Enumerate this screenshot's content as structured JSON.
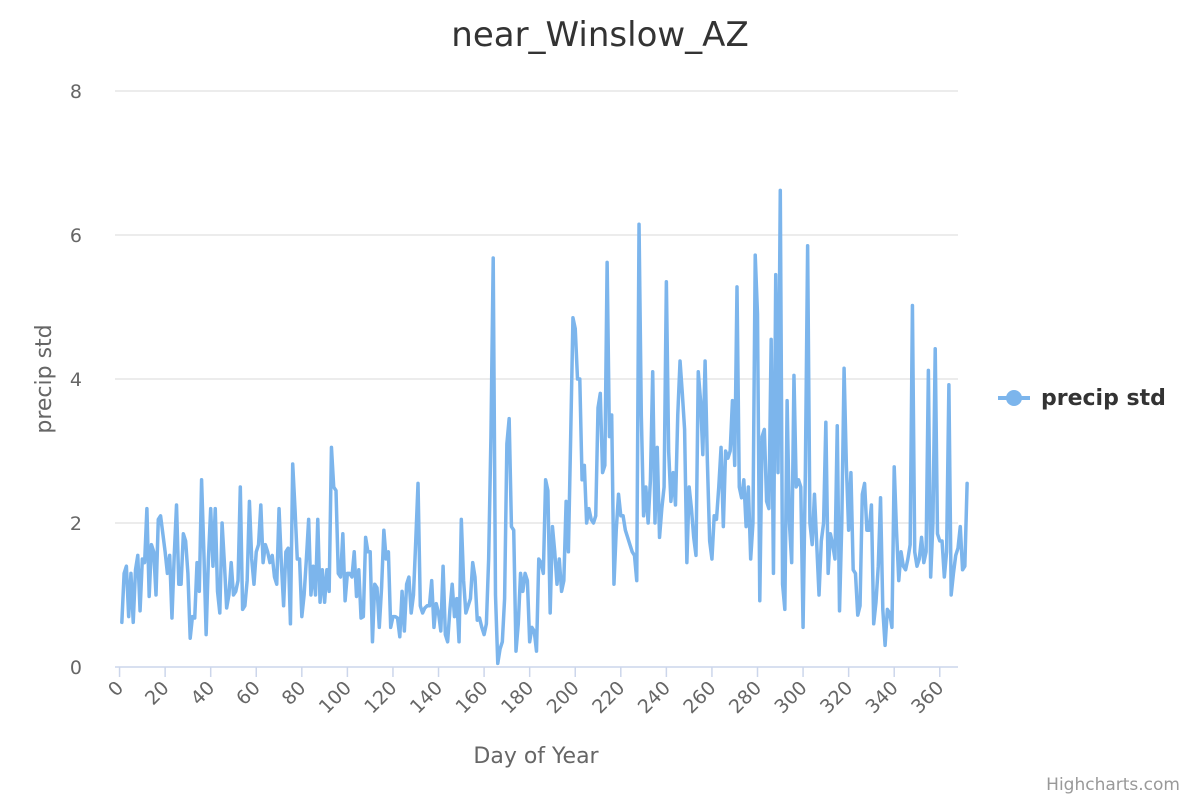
{
  "chart_data": {
    "type": "line",
    "title": "near_Winslow_AZ",
    "xlabel": "Day of Year",
    "ylabel": "precip std",
    "xlim": [
      -2,
      368
    ],
    "ylim": [
      0,
      8
    ],
    "x_ticks": [
      0,
      20,
      40,
      60,
      80,
      100,
      120,
      140,
      160,
      180,
      200,
      220,
      240,
      260,
      280,
      300,
      320,
      340,
      360
    ],
    "y_ticks": [
      0,
      2,
      4,
      6,
      8
    ],
    "grid": true,
    "legend": "right",
    "series": [
      {
        "name": "precip std",
        "color": "#7cb5ec",
        "x_start": 1,
        "values": [
          0.62,
          1.3,
          1.4,
          0.7,
          1.3,
          0.62,
          1.35,
          1.55,
          0.78,
          1.5,
          1.45,
          2.2,
          0.98,
          1.7,
          1.6,
          1.0,
          2.05,
          2.1,
          1.85,
          1.6,
          1.3,
          1.55,
          0.68,
          1.55,
          2.25,
          1.15,
          1.15,
          1.85,
          1.75,
          1.3,
          0.4,
          0.7,
          0.68,
          1.45,
          1.05,
          2.6,
          1.6,
          0.45,
          1.5,
          2.2,
          1.4,
          2.2,
          1.05,
          0.75,
          2.0,
          1.45,
          0.82,
          1.0,
          1.45,
          1.0,
          1.05,
          1.2,
          2.5,
          0.8,
          0.85,
          1.2,
          2.3,
          1.5,
          1.15,
          1.6,
          1.7,
          2.25,
          1.45,
          1.7,
          1.6,
          1.45,
          1.55,
          1.25,
          1.15,
          2.2,
          1.45,
          0.85,
          1.6,
          1.65,
          0.6,
          2.82,
          2.2,
          1.5,
          1.5,
          0.7,
          1.0,
          1.5,
          2.05,
          1.0,
          1.4,
          1.0,
          2.05,
          0.9,
          1.35,
          0.9,
          1.35,
          1.05,
          3.05,
          2.5,
          2.45,
          1.3,
          1.25,
          1.85,
          0.92,
          1.3,
          1.3,
          1.25,
          1.6,
          0.98,
          1.35,
          0.68,
          0.7,
          1.8,
          1.6,
          1.6,
          0.35,
          1.15,
          1.1,
          0.55,
          1.1,
          1.9,
          1.5,
          1.6,
          0.55,
          0.7,
          0.7,
          0.68,
          0.42,
          1.05,
          0.5,
          1.15,
          1.25,
          0.75,
          1.0,
          1.75,
          2.55,
          0.85,
          0.75,
          0.82,
          0.85,
          0.85,
          1.2,
          0.55,
          0.88,
          0.75,
          0.5,
          1.4,
          0.45,
          0.35,
          0.8,
          1.15,
          0.7,
          0.95,
          0.35,
          2.05,
          1.2,
          0.75,
          0.85,
          0.95,
          1.45,
          1.25,
          0.65,
          0.68,
          0.55,
          0.45,
          0.6,
          1.5,
          3.2,
          5.68,
          1.0,
          0.05,
          0.25,
          0.35,
          0.95,
          3.1,
          3.45,
          1.95,
          1.9,
          0.22,
          0.6,
          1.3,
          1.05,
          1.3,
          1.2,
          0.35,
          0.55,
          0.5,
          0.22,
          1.5,
          1.45,
          1.3,
          2.6,
          2.45,
          0.75,
          1.95,
          1.6,
          1.15,
          1.5,
          1.05,
          1.2,
          2.3,
          1.6,
          3.2,
          4.85,
          4.7,
          4.0,
          4.0,
          2.6,
          2.8,
          2.0,
          2.2,
          2.05,
          2.0,
          2.1,
          3.6,
          3.8,
          2.7,
          2.8,
          5.62,
          3.2,
          3.5,
          1.15,
          1.9,
          2.4,
          2.1,
          2.1,
          1.9,
          1.8,
          1.7,
          1.6,
          1.55,
          1.2,
          6.15,
          3.5,
          2.1,
          2.5,
          2.0,
          2.6,
          4.1,
          2.0,
          3.05,
          1.8,
          2.2,
          2.5,
          5.35,
          3.0,
          2.3,
          2.7,
          2.25,
          3.5,
          4.25,
          3.8,
          3.3,
          1.45,
          2.5,
          2.2,
          1.8,
          1.55,
          4.1,
          3.7,
          2.95,
          4.25,
          2.85,
          1.75,
          1.5,
          2.1,
          2.05,
          2.5,
          3.05,
          1.95,
          3.0,
          2.9,
          3.0,
          3.7,
          2.8,
          5.28,
          2.5,
          2.35,
          2.6,
          1.95,
          2.5,
          1.5,
          2.0,
          5.72,
          4.9,
          0.92,
          3.2,
          3.3,
          2.3,
          2.2,
          4.55,
          1.3,
          5.45,
          2.7,
          6.62,
          1.15,
          0.8,
          3.7,
          2.0,
          1.45,
          4.05,
          2.5,
          2.6,
          2.5,
          0.55,
          2.7,
          5.85,
          2.0,
          1.7,
          2.4,
          1.7,
          1.0,
          1.75,
          2.0,
          3.4,
          1.3,
          1.85,
          1.7,
          1.5,
          3.35,
          0.78,
          2.0,
          4.15,
          2.8,
          1.9,
          2.7,
          1.35,
          1.3,
          0.72,
          0.85,
          2.4,
          2.55,
          1.9,
          1.9,
          2.25,
          0.6,
          0.9,
          1.4,
          2.35,
          0.8,
          0.3,
          0.8,
          0.75,
          0.55,
          2.78,
          1.9,
          1.2,
          1.6,
          1.4,
          1.35,
          1.5,
          1.7,
          5.02,
          1.6,
          1.4,
          1.5,
          1.8,
          1.45,
          1.6,
          4.12,
          1.25,
          2.0,
          4.42,
          1.85,
          1.75,
          1.75,
          1.25,
          1.6,
          3.92,
          1.0,
          1.3,
          1.55,
          1.65,
          1.95,
          1.35,
          1.4,
          2.55
        ]
      }
    ]
  },
  "credits": "Highcharts.com"
}
